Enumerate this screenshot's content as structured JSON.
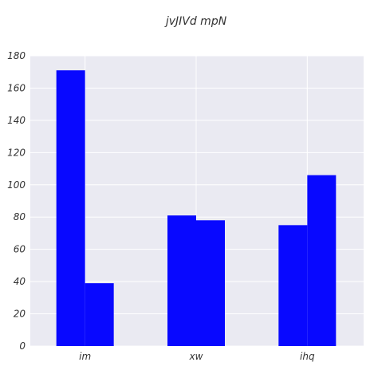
{
  "chart_data": {
    "type": "bar",
    "title": "jvJIVd mpN",
    "xlabel": "",
    "ylabel": "",
    "categories": [
      "im",
      "xw",
      "ihq"
    ],
    "series": [
      {
        "values": [
          171,
          81,
          75
        ]
      },
      {
        "values": [
          39,
          78,
          106
        ]
      }
    ],
    "ylim": [
      0,
      180
    ],
    "yticks": [
      0,
      20,
      40,
      60,
      80,
      100,
      120,
      140,
      160,
      180
    ],
    "grid": true,
    "legend": "none",
    "colors": {
      "bar": "#0000ff",
      "plot_background": "#eaeaf2",
      "grid": "#ffffff"
    }
  }
}
